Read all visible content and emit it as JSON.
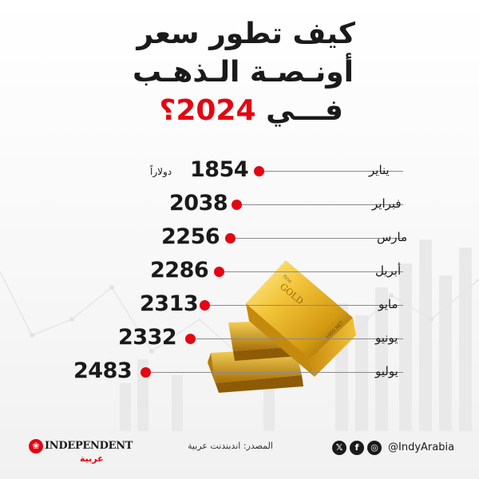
{
  "title": {
    "line1": "كيف تطور سعر",
    "line2": "أونـصـة الـذهـب",
    "line3_prefix": "فـــي",
    "line3_year": "2024",
    "line3_suffix": "؟"
  },
  "rows": [
    {
      "month": "يناير",
      "value": "1854",
      "unit": "دولاراً"
    },
    {
      "month": "فبراير",
      "value": "2038"
    },
    {
      "month": "مارس",
      "value": "2256"
    },
    {
      "month": "أبريل",
      "value": "2286"
    },
    {
      "month": "مايو",
      "value": "2313"
    },
    {
      "month": "يونيو",
      "value": "2332"
    },
    {
      "month": "يوليو",
      "value": "2483"
    }
  ],
  "gold_bar_text": {
    "brand": "GOLD",
    "small": "Fine",
    "weight": "1000 NET"
  },
  "footer": {
    "brand_name": "INDEPENDENT",
    "brand_arabic": "عربية",
    "source": "المصدر: اندبندنت عربية",
    "handle": "@IndyArabia"
  },
  "colors": {
    "accent": "#e30613",
    "text": "#1a1a1a"
  },
  "icons": [
    "x-icon",
    "facebook-icon",
    "instagram-icon"
  ]
}
